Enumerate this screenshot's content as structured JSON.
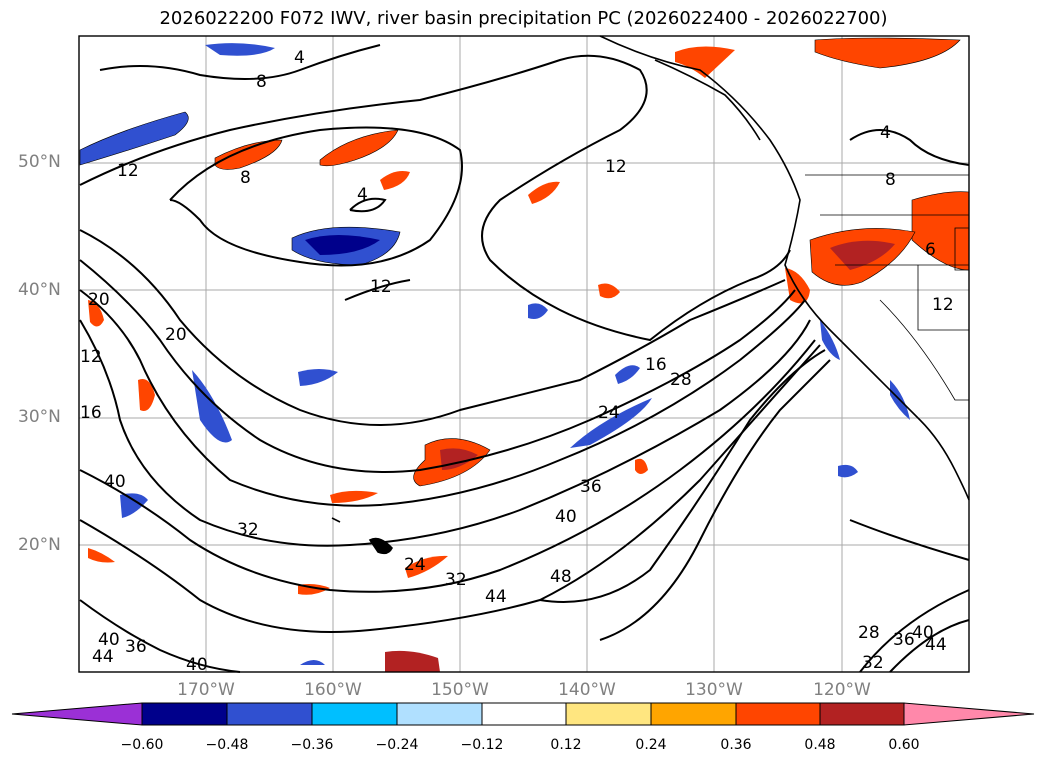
{
  "title": "2026022200 F072 IWV, river basin precipitation PC (2026022400 - 2026022700)",
  "lat_labels": [
    "50°N",
    "40°N",
    "30°N",
    "20°N"
  ],
  "lon_labels": [
    "170°W",
    "160°W",
    "150°W",
    "140°W",
    "130°W",
    "120°W"
  ],
  "colorbar": {
    "ticks": [
      "−0.60",
      "−0.48",
      "−0.36",
      "−0.24",
      "−0.12",
      "0.12",
      "0.24",
      "0.36",
      "0.48",
      "0.60"
    ],
    "colors": [
      "#9b30d6",
      "#00008b",
      "#3050d0",
      "#00bfff",
      "#b0e0ff",
      "#ffffff",
      "#ffe680",
      "#ffa500",
      "#ff4500",
      "#b22222",
      "#ff88aa"
    ]
  },
  "contour_labels": [
    "4",
    "8",
    "12",
    "8",
    "4",
    "12",
    "12",
    "16",
    "20",
    "20",
    "24",
    "28",
    "24",
    "32",
    "36",
    "40",
    "40",
    "48",
    "44",
    "32",
    "12",
    "16",
    "40",
    "36",
    "44",
    "40",
    "28",
    "36",
    "40",
    "44",
    "32",
    "4",
    "8",
    "6",
    "12"
  ],
  "colors": {
    "frame": "#000000",
    "grid": "#a0a0a0",
    "land_border": "#000000"
  }
}
